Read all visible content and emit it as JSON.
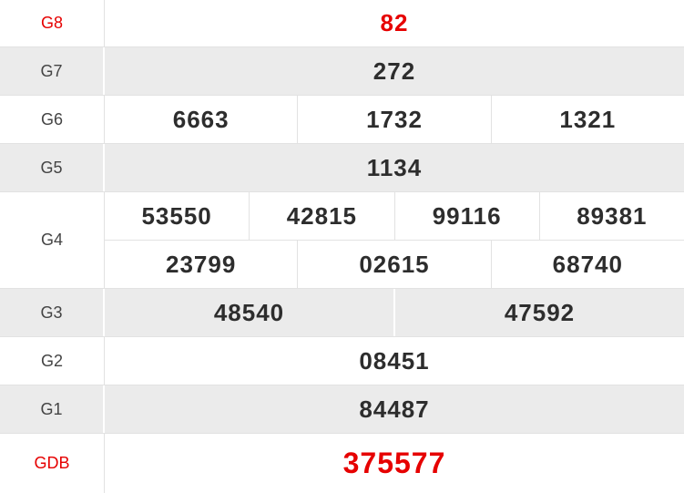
{
  "colors": {
    "highlight_red": "#e60000",
    "text_dark": "#2d2d2d",
    "label_gray": "#444444",
    "row_gray": "#ebebeb",
    "border_light": "#e2e2e2"
  },
  "rows": [
    {
      "label": "G8",
      "values": [
        "82"
      ]
    },
    {
      "label": "G7",
      "values": [
        "272"
      ]
    },
    {
      "label": "G6",
      "values": [
        "6663",
        "1732",
        "1321"
      ]
    },
    {
      "label": "G5",
      "values": [
        "1134"
      ]
    },
    {
      "label": "G4",
      "row1": [
        "53550",
        "42815",
        "99116",
        "89381"
      ],
      "row2": [
        "23799",
        "02615",
        "68740"
      ]
    },
    {
      "label": "G3",
      "values": [
        "48540",
        "47592"
      ]
    },
    {
      "label": "G2",
      "values": [
        "08451"
      ]
    },
    {
      "label": "G1",
      "values": [
        "84487"
      ]
    },
    {
      "label": "GDB",
      "values": [
        "375577"
      ]
    }
  ]
}
